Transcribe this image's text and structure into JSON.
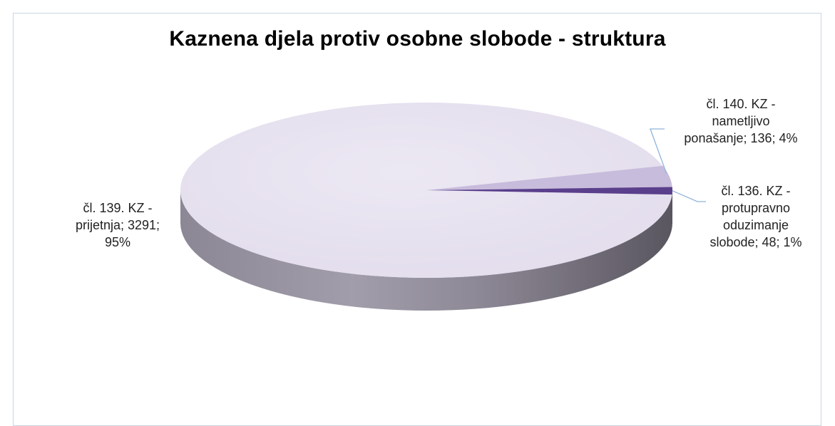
{
  "chart_data": {
    "type": "pie",
    "title": "Kaznena djela protiv osobne slobode - struktura",
    "slices": [
      {
        "name": "čl. 139. KZ - prijetnja",
        "value": 3291,
        "percent": 95,
        "color": "#e7e2f0",
        "label_lines": [
          "čl. 139. KZ -",
          "prijetnja; 3291;",
          "95%"
        ]
      },
      {
        "name": "čl. 140. KZ - nametljivo ponašanje",
        "value": 136,
        "percent": 4,
        "color": "#c8bcdc",
        "label_lines": [
          "čl. 140. KZ -",
          "nametljivo",
          "ponašanje; 136; 4%"
        ]
      },
      {
        "name": "čl. 136. KZ - protupravno oduzimanje slobode",
        "value": 48,
        "percent": 1,
        "color": "#5a3f8c",
        "label_lines": [
          "čl. 136. KZ -",
          "protupravno",
          "oduzimanje",
          "slobode; 48; 1%"
        ]
      }
    ],
    "style": "3d-pie",
    "leader_line_color": "#8fb3d9"
  }
}
